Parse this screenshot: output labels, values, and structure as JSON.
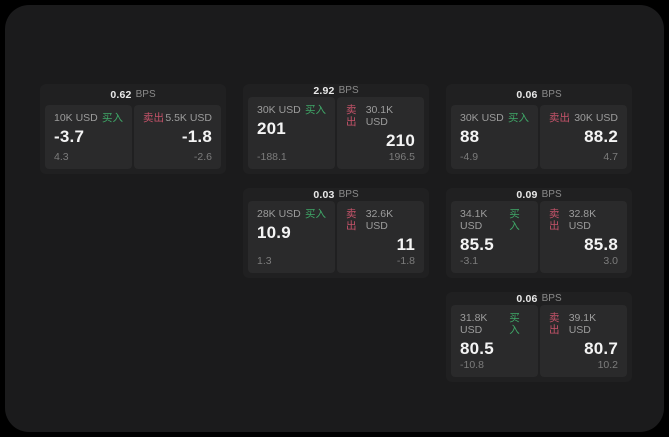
{
  "labels": {
    "buy": "买入",
    "sell": "卖出",
    "bps_unit": "BPS"
  },
  "colors": {
    "outside_background": "#000000",
    "window_background": "#1b1b1c",
    "card_background": "#202021",
    "panel_background": "#2a2a2b",
    "buy_accent": "#3fa868",
    "sell_accent": "#c5536a",
    "price_text": "#f4f4f4",
    "muted_text": "#9c9c9c"
  },
  "cards": [
    {
      "bps": "0.62",
      "buy": {
        "amount": "10K USD",
        "price": "-3.7",
        "delta": "4.3"
      },
      "sell": {
        "amount": "5.5K USD",
        "price": "-1.8",
        "delta": "-2.6"
      }
    },
    {
      "bps": "2.92",
      "buy": {
        "amount": "30K USD",
        "price": "201",
        "delta": "-188.1"
      },
      "sell": {
        "amount": "30.1K USD",
        "price": "210",
        "delta": "196.5"
      }
    },
    {
      "bps": "0.06",
      "buy": {
        "amount": "30K USD",
        "price": "88",
        "delta": "-4.9"
      },
      "sell": {
        "amount": "30K USD",
        "price": "88.2",
        "delta": "4.7"
      }
    },
    {
      "bps": "0.03",
      "buy": {
        "amount": "28K USD",
        "price": "10.9",
        "delta": "1.3"
      },
      "sell": {
        "amount": "32.6K USD",
        "price": "11",
        "delta": "-1.8"
      }
    },
    {
      "bps": "0.09",
      "buy": {
        "amount": "34.1K USD",
        "price": "85.5",
        "delta": "-3.1"
      },
      "sell": {
        "amount": "32.8K USD",
        "price": "85.8",
        "delta": "3.0"
      }
    },
    {
      "bps": "0.06",
      "buy": {
        "amount": "31.8K USD",
        "price": "80.5",
        "delta": "-10.8"
      },
      "sell": {
        "amount": "39.1K USD",
        "price": "80.7",
        "delta": "10.2"
      }
    }
  ]
}
